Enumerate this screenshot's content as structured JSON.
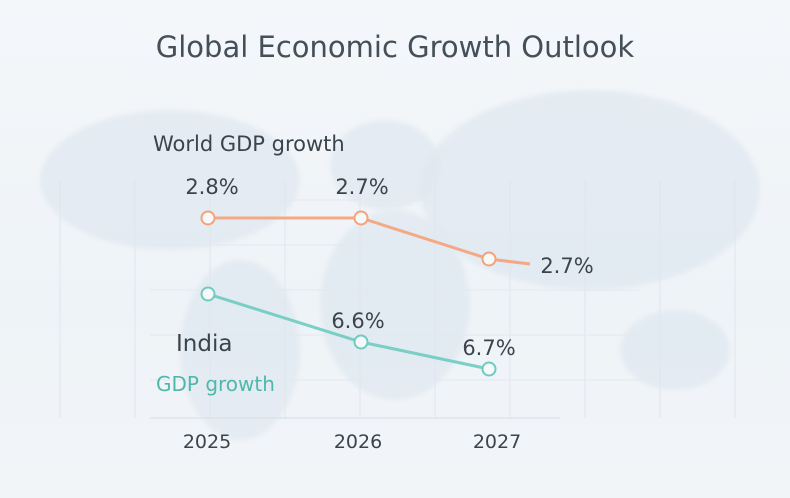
{
  "chart_data": {
    "type": "line",
    "title": "Global Economic Growth Outlook",
    "categories": [
      "2025",
      "2026",
      "2027"
    ],
    "series": [
      {
        "name": "World GDP growth",
        "values": [
          2.8,
          2.7,
          2.7
        ],
        "labels": [
          "2.8%",
          "2.7%",
          "2.7%"
        ],
        "color": "#f4a27a"
      },
      {
        "name": "India",
        "subname": "GDP growth",
        "values": [
          null,
          6.6,
          6.7
        ],
        "labels": [
          "",
          "6.6%",
          "6.7%"
        ],
        "color": "#6dcbc0"
      }
    ],
    "grid": true,
    "background": "faint world map"
  }
}
